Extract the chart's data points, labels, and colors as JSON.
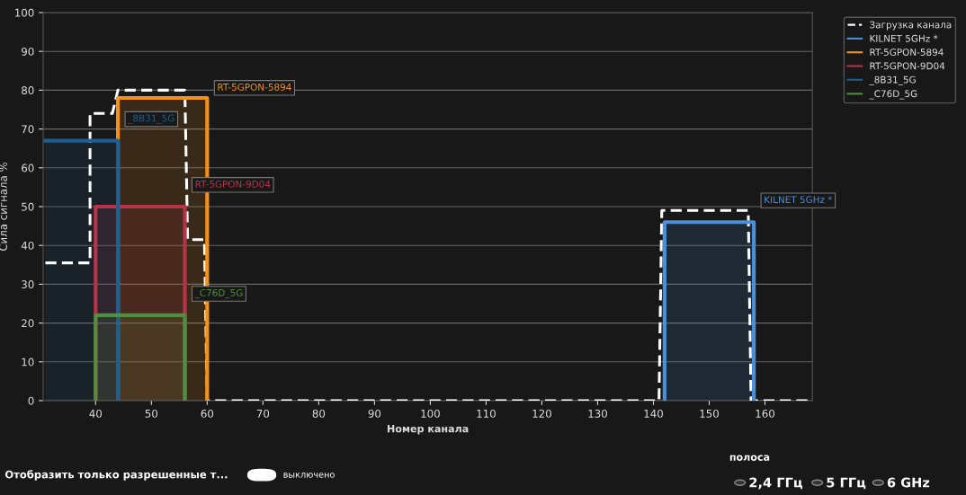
{
  "chart_data": {
    "type": "area",
    "xlabel": "Номер канала",
    "ylabel": "Сила сигнала %",
    "xlim": [
      30.6,
      168.5
    ],
    "xticks": [
      40,
      50,
      60,
      70,
      80,
      90,
      100,
      110,
      120,
      130,
      140,
      150,
      160
    ],
    "ylim": [
      0,
      100
    ],
    "yticks": [
      0,
      10,
      20,
      30,
      40,
      50,
      60,
      70,
      80,
      90,
      100
    ],
    "grid": "y",
    "legend": "top right",
    "line_style": "solid",
    "marker": "none",
    "series": [
      {
        "name": "Загрузка канала",
        "type": "line",
        "line_style": "dashed",
        "color": "#ffffff",
        "x": [
          31,
          39,
          39,
          43,
          44,
          56,
          56.5,
          59.5,
          60,
          141,
          141.5,
          157,
          157.5,
          168
        ],
        "values": [
          35.5,
          35.5,
          74,
          74,
          80,
          80,
          41.5,
          41.5,
          0,
          0,
          49,
          49,
          0,
          0
        ]
      },
      {
        "name": "KILNET 5GHz *",
        "color": "#4a8fd8",
        "x": [
          142,
          142,
          158,
          158
        ],
        "values": [
          0,
          46,
          46,
          0
        ]
      },
      {
        "name": "RT-5GPON-5894",
        "color": "#f39019",
        "x": [
          44,
          44,
          60,
          60
        ],
        "values": [
          0,
          78,
          78,
          0
        ]
      },
      {
        "name": "RT-5GPON-9D04",
        "color": "#b5344a",
        "x": [
          40,
          40,
          56,
          56
        ],
        "values": [
          0,
          50,
          50,
          0
        ]
      },
      {
        "name": "_8B31_5G",
        "color": "#1f5f8f",
        "x": [
          31,
          44,
          44
        ],
        "values": [
          67,
          67,
          0
        ]
      },
      {
        "name": "_C76D_5G",
        "color": "#4f8f3f",
        "x": [
          40,
          40,
          56,
          56
        ],
        "values": [
          0,
          22,
          22,
          0
        ]
      }
    ],
    "annotations": [
      {
        "text": "KILNET 5GHz *",
        "x": 158,
        "y": 49
      },
      {
        "text": "RT-5GPON-5894",
        "x": 60,
        "y": 78
      },
      {
        "text": "RT-5GPON-9D04",
        "x": 56,
        "y": 53
      },
      {
        "text": "_8B31_5G",
        "x": 44,
        "y": 70
      },
      {
        "text": "_C76D_5G",
        "x": 56,
        "y": 25
      },
      "Отобразить только разрешенные т...",
      "выключено",
      "полоса",
      "2,4 ГГц",
      "5 ГГц",
      "6 GHz"
    ]
  }
}
